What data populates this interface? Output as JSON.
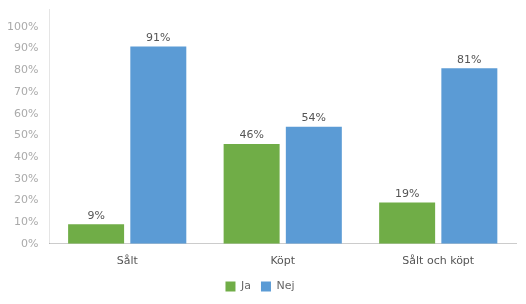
{
  "chart_data": {
    "type": "bar",
    "categories": [
      "Sålt",
      "Köpt",
      "Sålt och köpt"
    ],
    "series": [
      {
        "name": "Ja",
        "color": "#70ad47",
        "values": [
          9,
          46,
          19
        ],
        "value_labels": [
          "9%",
          "46%",
          "19%"
        ]
      },
      {
        "name": "Nej",
        "color": "#5b9bd5",
        "values": [
          91,
          54,
          81
        ],
        "value_labels": [
          "91%",
          "54%",
          "81%"
        ]
      }
    ],
    "ylim": [
      0,
      108
    ],
    "yticks": [
      {
        "value": 0,
        "label": "0%"
      },
      {
        "value": 10,
        "label": "10%"
      },
      {
        "value": 20,
        "label": "20%"
      },
      {
        "value": 30,
        "label": "30%"
      },
      {
        "value": 40,
        "label": "40%"
      },
      {
        "value": 50,
        "label": "50%"
      },
      {
        "value": 60,
        "label": "60%"
      },
      {
        "value": 70,
        "label": "70%"
      },
      {
        "value": 80,
        "label": "80%"
      },
      {
        "value": 90,
        "label": "90%"
      },
      {
        "value": 100,
        "label": "100%"
      }
    ],
    "grid": false,
    "legend": "bottom",
    "data_labels": true
  }
}
